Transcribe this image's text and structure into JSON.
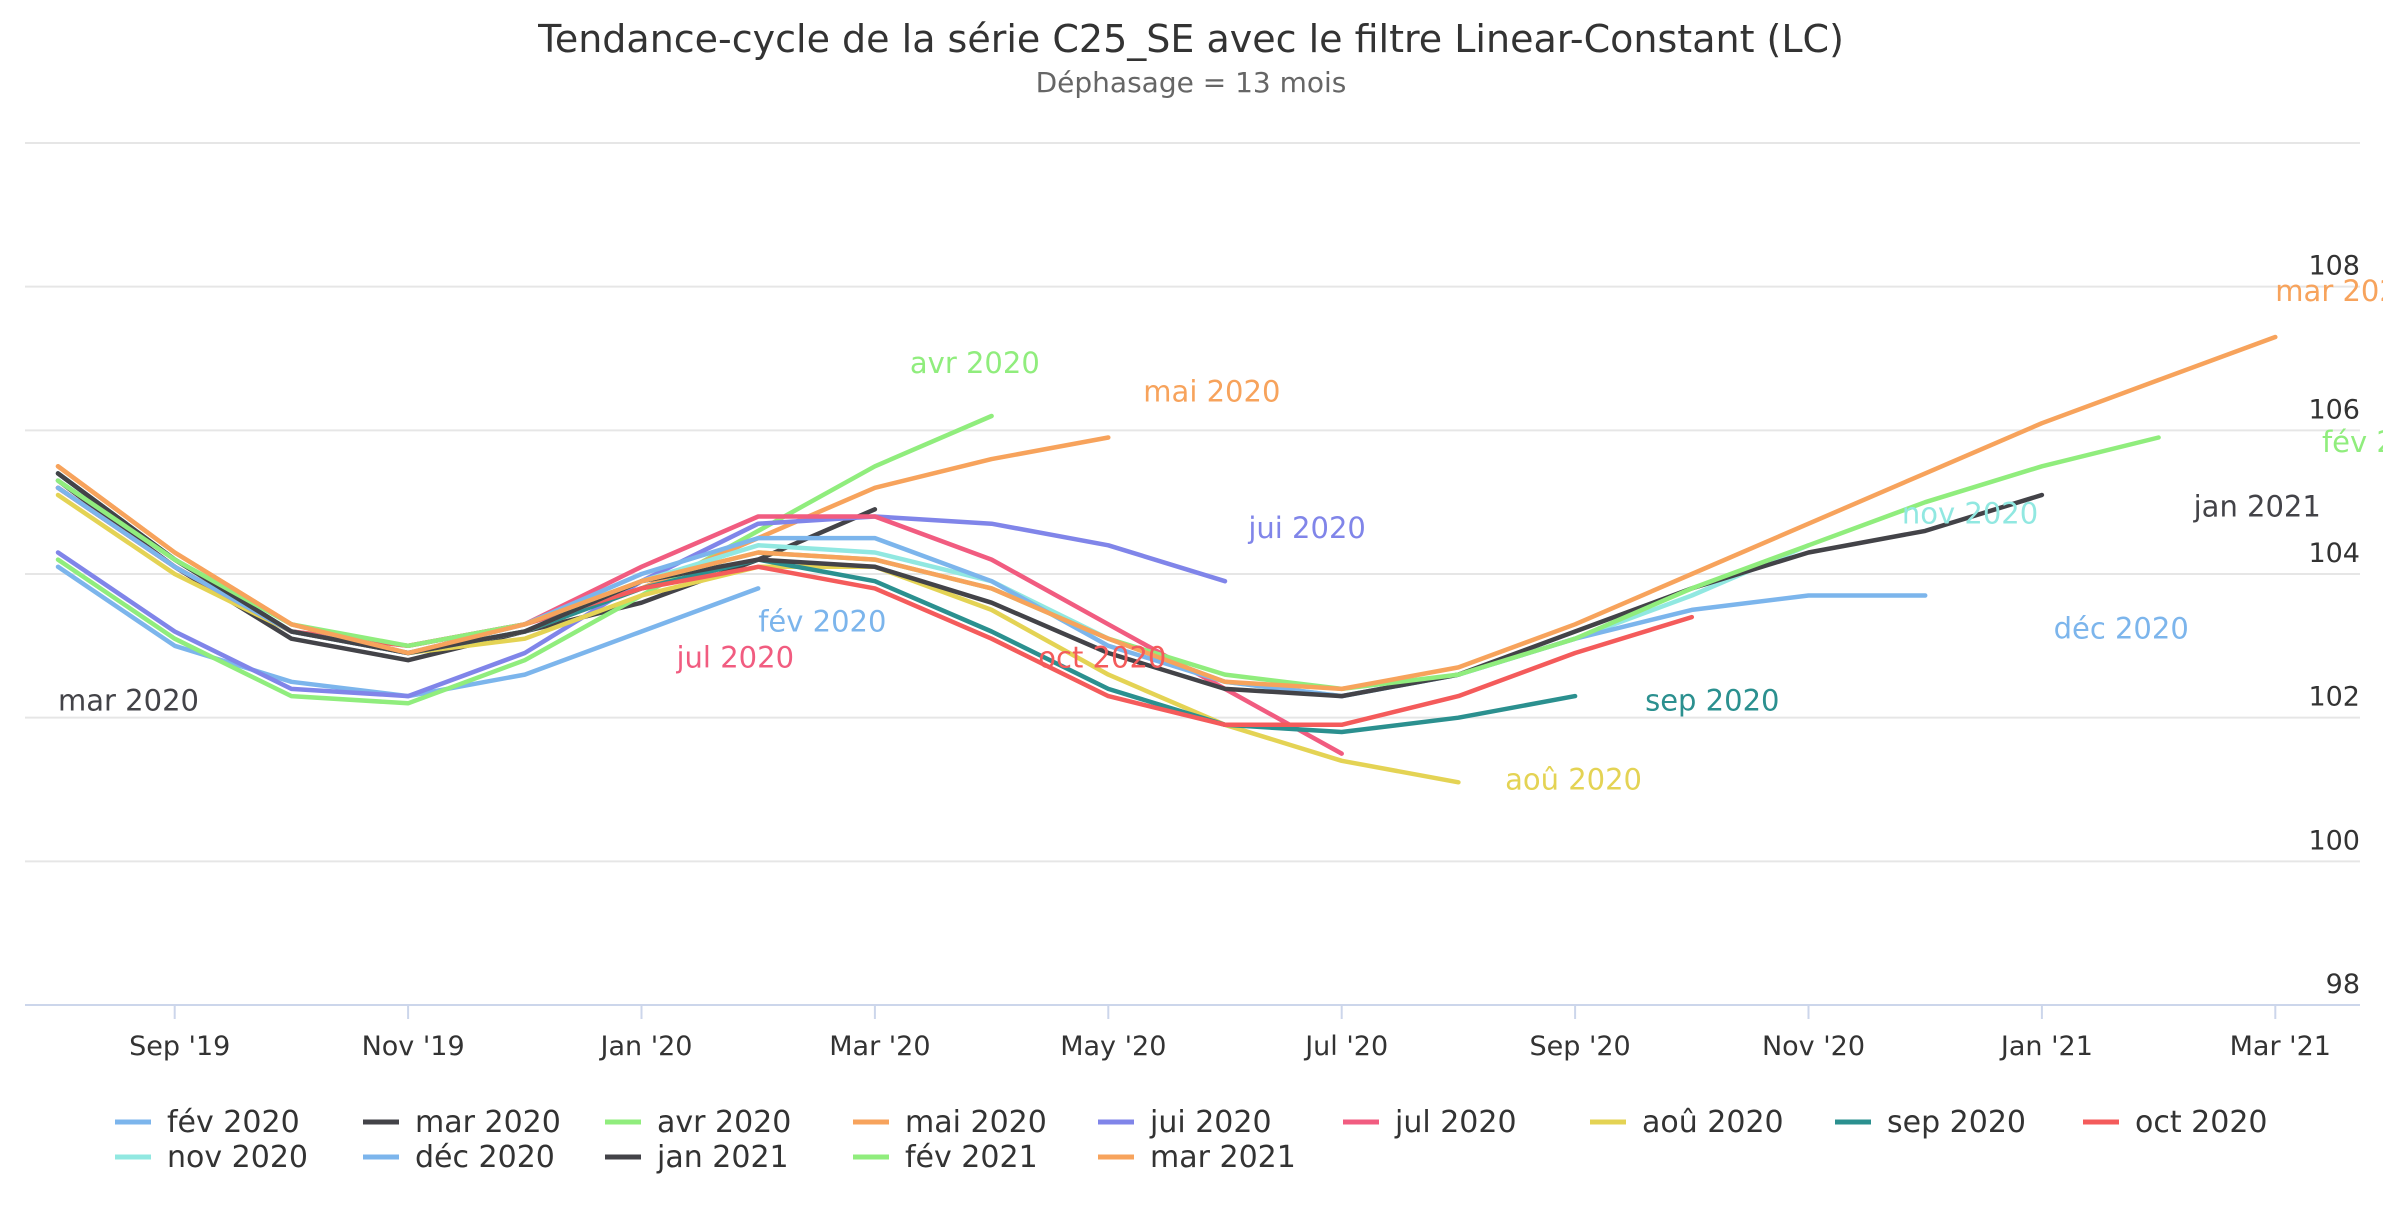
{
  "chart_data": {
    "type": "line",
    "title": "Tendance-cycle de la série C25_SE avec le filtre Linear-Constant (LC)",
    "subtitle": "Déphasage = 13 mois",
    "xlabel": "",
    "ylabel": "",
    "x_months": [
      "2019-08",
      "2019-09",
      "2019-10",
      "2019-11",
      "2019-12",
      "2020-01",
      "2020-02",
      "2020-03",
      "2020-04",
      "2020-05",
      "2020-06",
      "2020-07",
      "2020-08",
      "2020-09",
      "2020-10",
      "2020-11",
      "2020-12",
      "2021-01",
      "2021-02",
      "2021-03"
    ],
    "x_tick_labels": [
      {
        "month": "2019-09",
        "label": "Sep '19"
      },
      {
        "month": "2019-11",
        "label": "Nov '19"
      },
      {
        "month": "2020-01",
        "label": "Jan '20"
      },
      {
        "month": "2020-03",
        "label": "Mar '20"
      },
      {
        "month": "2020-05",
        "label": "May '20"
      },
      {
        "month": "2020-07",
        "label": "Jul '20"
      },
      {
        "month": "2020-09",
        "label": "Sep '20"
      },
      {
        "month": "2020-11",
        "label": "Nov '20"
      },
      {
        "month": "2021-01",
        "label": "Jan '21"
      },
      {
        "month": "2021-03",
        "label": "Mar '21"
      }
    ],
    "ylim": [
      98,
      110
    ],
    "y_ticks": [
      98,
      100,
      102,
      104,
      106,
      108
    ],
    "y_axis_position": "right",
    "grid": true,
    "legend_position": "bottom",
    "series": [
      {
        "name": "fév 2020",
        "color": "#7cb5ec",
        "start": "2019-08",
        "values": [
          104.1,
          103.0,
          102.5,
          102.3,
          102.6,
          103.2,
          103.8
        ],
        "label_anchor": [
          6,
          -0.6
        ]
      },
      {
        "name": "mar 2020",
        "color": "#434348",
        "start": "2019-08",
        "values": [
          105.3,
          104.1,
          103.1,
          102.8,
          103.2,
          103.6,
          104.2,
          104.9
        ],
        "label_anchor": [
          0,
          -2.8
        ]
      },
      {
        "name": "avr 2020",
        "color": "#90ed7d",
        "start": "2019-08",
        "values": [
          104.2,
          103.1,
          102.3,
          102.2,
          102.8,
          103.7,
          104.6,
          105.5,
          106.2
        ],
        "label_anchor": [
          7.3,
          0.6
        ]
      },
      {
        "name": "mai 2020",
        "color": "#f7a35c",
        "start": "2019-08",
        "values": [
          105.5,
          104.3,
          103.3,
          102.9,
          103.2,
          103.8,
          104.5,
          105.2,
          105.6,
          105.9
        ],
        "label_anchor": [
          9.3,
          0.5
        ]
      },
      {
        "name": "jui 2020",
        "color": "#8085e9",
        "start": "2019-08",
        "values": [
          104.3,
          103.2,
          102.4,
          102.3,
          102.9,
          103.9,
          104.7,
          104.8,
          104.7,
          104.4,
          103.9
        ],
        "label_anchor": [
          10.2,
          0.6
        ]
      },
      {
        "name": "jul 2020",
        "color": "#f15c80",
        "start": "2019-08",
        "values": [
          105.2,
          104.1,
          103.2,
          103.0,
          103.3,
          104.1,
          104.8,
          104.8,
          104.2,
          103.3,
          102.4,
          101.5
        ],
        "label_anchor": [
          5.3,
          1.2
        ]
      },
      {
        "name": "aoû 2020",
        "color": "#e4d354",
        "start": "2019-08",
        "values": [
          105.1,
          104.0,
          103.2,
          102.9,
          103.1,
          103.7,
          104.1,
          104.1,
          103.5,
          102.6,
          101.9,
          101.4,
          101.1
        ],
        "label_anchor": [
          12.4,
          -0.1
        ]
      },
      {
        "name": "sep 2020",
        "color": "#2b908f",
        "start": "2019-08",
        "values": [
          105.4,
          104.2,
          103.2,
          102.9,
          103.2,
          103.8,
          104.2,
          103.9,
          103.2,
          102.4,
          101.9,
          101.8,
          102.0,
          102.3
        ],
        "label_anchor": [
          13.6,
          -0.2
        ]
      },
      {
        "name": "oct 2020",
        "color": "#f45b5b",
        "start": "2019-08",
        "values": [
          105.2,
          104.1,
          103.2,
          103.0,
          103.3,
          103.8,
          104.1,
          103.8,
          103.1,
          102.3,
          101.9,
          101.9,
          102.3,
          102.9,
          103.4
        ],
        "label_anchor": [
          8.4,
          -0.7
        ]
      },
      {
        "name": "nov 2020",
        "color": "#91e8e1",
        "start": "2019-08",
        "values": [
          105.3,
          104.2,
          103.3,
          102.9,
          103.2,
          103.9,
          104.4,
          104.3,
          103.9,
          103.1,
          102.5,
          102.3,
          102.6,
          103.1,
          103.7,
          104.4
        ],
        "label_anchor": [
          15.8,
          0.3
        ]
      },
      {
        "name": "déc 2020",
        "color": "#7cb5ec",
        "start": "2019-08",
        "values": [
          105.2,
          104.1,
          103.2,
          102.9,
          103.3,
          104.0,
          104.5,
          104.5,
          103.9,
          103.0,
          102.5,
          102.3,
          102.6,
          103.1,
          103.5,
          103.7,
          103.7
        ],
        "label_anchor": [
          17.1,
          -0.6
        ]
      },
      {
        "name": "jan 2021",
        "color": "#434348",
        "start": "2019-08",
        "values": [
          105.4,
          104.2,
          103.2,
          102.9,
          103.2,
          103.9,
          104.2,
          104.1,
          103.6,
          102.9,
          102.4,
          102.3,
          102.6,
          103.2,
          103.8,
          104.3,
          104.6,
          105.1
        ],
        "label_anchor": [
          18.3,
          -0.3
        ]
      },
      {
        "name": "fév 2021",
        "color": "#90ed7d",
        "start": "2019-08",
        "values": [
          105.3,
          104.2,
          103.3,
          103.0,
          103.3,
          103.9,
          104.3,
          104.2,
          103.8,
          103.1,
          102.6,
          102.4,
          102.6,
          103.1,
          103.8,
          104.4,
          105.0,
          105.5,
          105.9
        ],
        "label_anchor": [
          19.4,
          -0.2
        ]
      },
      {
        "name": "mar 2021",
        "color": "#f7a35c",
        "start": "2019-08",
        "values": [
          105.5,
          104.3,
          103.3,
          102.9,
          103.3,
          103.9,
          104.3,
          104.2,
          103.8,
          103.1,
          102.5,
          102.4,
          102.7,
          103.3,
          104.0,
          104.7,
          105.4,
          106.1,
          106.7,
          107.3
        ],
        "label_anchor": [
          19.0,
          0.5
        ]
      }
    ]
  }
}
